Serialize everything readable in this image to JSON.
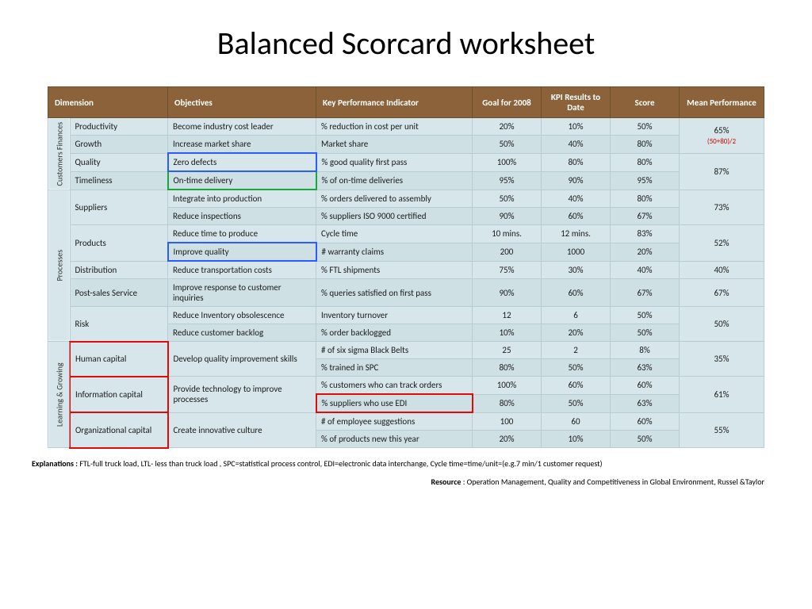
{
  "title": "Balanced Scorcard worksheet",
  "header": {
    "dimension": "Dimension",
    "objectives": "Objectives",
    "kpi": "Key Performance Indicator",
    "goal": "Goal for 2008",
    "results": "KPI Results to Date",
    "score": "Score",
    "mean": "Mean Performance"
  },
  "vlabels": {
    "cf": "Customers  Finances",
    "proc": "Processes",
    "lg": "Learning & Growing"
  },
  "dims": {
    "productivity": "Productivity",
    "growth": "Growth",
    "quality": "Quality",
    "timeliness": "Timeliness",
    "suppliers": "Suppliers",
    "products": "Products",
    "distribution": "Distribution",
    "postsales": "Post-sales Service",
    "risk": "Risk",
    "human": "Human capital",
    "info": "Information capital",
    "org": "Organizational capital"
  },
  "objs": {
    "r1": "Become industry cost leader",
    "r2": "Increase market share",
    "r3": "Zero defects",
    "r4": "On-time delivery",
    "r5": "Integrate into production",
    "r6": "Reduce inspections",
    "r7": "Reduce time to produce",
    "r8": "Improve quality",
    "r9": "Reduce transportation costs",
    "r10": "Improve response to customer inquiries",
    "r11": "Reduce Inventory obsolescence",
    "r12": "Reduce customer backlog",
    "r13": "Develop quality improvement skills",
    "r15": "Provide technology to improve processes",
    "r17": "Create innovative culture"
  },
  "kpis": {
    "r1": "% reduction in cost per unit",
    "r2": "Market share",
    "r3": "% good quality first pass",
    "r4": "% of on-time deliveries",
    "r5": "% orders delivered to assembly",
    "r6": "% suppliers ISO 9000 certified",
    "r7": "Cycle time",
    "r8": "# warranty claims",
    "r9": "% FTL shipments",
    "r10": "% queries satisfied on first pass",
    "r11": "Inventory turnover",
    "r12": "% order backlogged",
    "r13": "# of six sigma Black Belts",
    "r14": "% trained in SPC",
    "r15": "% customers who can track orders",
    "r16": "% suppliers who use EDI",
    "r17": "# of employee suggestions",
    "r18": "% of products new this year"
  },
  "goals": {
    "r1": "20%",
    "r2": "50%",
    "r3": "100%",
    "r4": "95%",
    "r5": "50%",
    "r6": "90%",
    "r7": "10 mins.",
    "r8": "200",
    "r9": "75%",
    "r10": "90%",
    "r11": "12",
    "r12": "10%",
    "r13": "25",
    "r14": "80%",
    "r15": "100%",
    "r16": "80%",
    "r17": "100",
    "r18": "20%"
  },
  "results": {
    "r1": "10%",
    "r2": "40%",
    "r3": "80%",
    "r4": "90%",
    "r5": "40%",
    "r6": "60%",
    "r7": "12 mins.",
    "r8": "1000",
    "r9": "30%",
    "r10": "60%",
    "r11": "6",
    "r12": "20%",
    "r13": "2",
    "r14": "50%",
    "r15": "60%",
    "r16": "50%",
    "r17": "60",
    "r18": "10%"
  },
  "scores": {
    "r1": "50%",
    "r2": "80%",
    "r3": "80%",
    "r4": "95%",
    "r5": "80%",
    "r6": "67%",
    "r7": "83%",
    "r8": "20%",
    "r9": "40%",
    "r10": "67%",
    "r11": "50%",
    "r12": "50%",
    "r13": "8%",
    "r14": "63%",
    "r15": "60%",
    "r16": "63%",
    "r17": "60%",
    "r18": "50%"
  },
  "means": {
    "m1": "65%",
    "m1_formula": "(50+80)/2",
    "m2": "87%",
    "m3": "73%",
    "m4": "52%",
    "m5": "40%",
    "m6": "67%",
    "m7": "50%",
    "m8": "35%",
    "m9": "61%",
    "m10": "55%"
  },
  "explanations_label": "Explanations  :",
  "explanations": "FTL-full truck load, LTL- less than truck load , SPC=statistical process control, EDI=electronic data interchange, Cycle time=time/unit=(e.g.7 min/1 customer request)",
  "resource_label": "Resource",
  "resource": ": Operation Management, Quality and Competitiveness in Global  Environment, Russel &Taylor",
  "colors": {
    "header_bg": "#8b6239",
    "cell_bg": "#d6e6ea",
    "border": "#b8cdd2",
    "highlight_blue": "#2a5cff",
    "highlight_green": "#19a63b",
    "highlight_red": "#e20909"
  }
}
